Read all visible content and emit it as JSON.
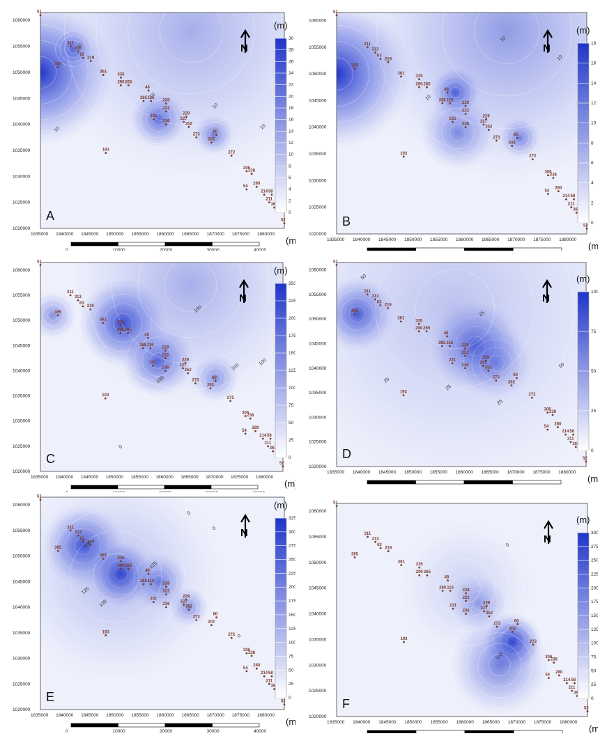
{
  "colors": {
    "deep": "#1f35c9",
    "light": "#eef0fb",
    "marker": "#7a3b2a",
    "bar": "#000000"
  },
  "common": {
    "unit": "(m)",
    "north_letter": "N",
    "x_ticks": [
      "1835000",
      "1840000",
      "1845000",
      "1850000",
      "1855000",
      "1860000",
      "1865000",
      "1870000",
      "1875000",
      "1880000"
    ],
    "y_ticks": [
      "1060000",
      "1055000",
      "1050000",
      "1045000",
      "1040000",
      "1035000",
      "1030000",
      "1025000",
      "1020000"
    ],
    "scale_labels": [
      "0",
      "10000",
      "20000",
      "30000",
      "40000"
    ],
    "scale_unit": "(m)"
  },
  "chart_data": [
    {
      "type": "heatmap",
      "panel": "A",
      "colorbar_max": 30,
      "colorbar_ticks": [
        "30",
        "28",
        "26",
        "24",
        "22",
        "20",
        "18",
        "16",
        "14",
        "12",
        "10",
        "8",
        "6",
        "4",
        "2",
        "0"
      ],
      "contour_labels": [
        "10",
        "10",
        "10",
        "10",
        "10"
      ],
      "stations": [
        {
          "id": "51",
          "x": 1835000,
          "y": 1061000
        },
        {
          "id": "311",
          "x": 1841000,
          "y": 1055000
        },
        {
          "id": "313",
          "x": 1842500,
          "y": 1054000
        },
        {
          "id": "63",
          "x": 1843500,
          "y": 1052800
        },
        {
          "id": "219",
          "x": 1845000,
          "y": 1052200
        },
        {
          "id": "365",
          "x": 1838500,
          "y": 1051000
        },
        {
          "id": "361",
          "x": 1847500,
          "y": 1049500
        },
        {
          "id": "335",
          "x": 1851000,
          "y": 1049000
        },
        {
          "id": "290",
          "x": 1851000,
          "y": 1047500
        },
        {
          "id": "265",
          "x": 1852500,
          "y": 1047500
        },
        {
          "id": "48",
          "x": 1856500,
          "y": 1046500
        },
        {
          "id": "285",
          "x": 1855500,
          "y": 1044500
        },
        {
          "id": "116",
          "x": 1857000,
          "y": 1044500
        },
        {
          "id": "228",
          "x": 1860000,
          "y": 1044000
        },
        {
          "id": "222",
          "x": 1860000,
          "y": 1042500
        },
        {
          "id": "229",
          "x": 1864000,
          "y": 1041500
        },
        {
          "id": "231",
          "x": 1857500,
          "y": 1041000
        },
        {
          "id": "236",
          "x": 1860000,
          "y": 1040000
        },
        {
          "id": "227",
          "x": 1863500,
          "y": 1040500
        },
        {
          "id": "352",
          "x": 1864500,
          "y": 1039500
        },
        {
          "id": "273",
          "x": 1866000,
          "y": 1037500
        },
        {
          "id": "60",
          "x": 1870000,
          "y": 1038000
        },
        {
          "id": "202",
          "x": 1869000,
          "y": 1036500
        },
        {
          "id": "193",
          "x": 1848000,
          "y": 1034500
        },
        {
          "id": "272",
          "x": 1873000,
          "y": 1034000
        },
        {
          "id": "306",
          "x": 1876000,
          "y": 1031000
        },
        {
          "id": "238",
          "x": 1877000,
          "y": 1030500
        },
        {
          "id": "54",
          "x": 1876000,
          "y": 1027500
        },
        {
          "id": "280",
          "x": 1878000,
          "y": 1028000
        },
        {
          "id": "214",
          "x": 1879500,
          "y": 1026500
        },
        {
          "id": "58",
          "x": 1881000,
          "y": 1026500
        },
        {
          "id": "211",
          "x": 1880500,
          "y": 1025000
        },
        {
          "id": "363",
          "x": 1881500,
          "y": 1024000
        },
        {
          "id": "52",
          "x": 1883500,
          "y": 1021000
        }
      ]
    },
    {
      "type": "heatmap",
      "panel": "B",
      "colorbar_max": 18,
      "colorbar_ticks": [
        "18",
        "16",
        "14",
        "12",
        "10",
        "8",
        "6",
        "4",
        "2",
        "0"
      ],
      "contour_labels": [
        "10",
        "10",
        "10"
      ],
      "stations": "same"
    },
    {
      "type": "heatmap",
      "panel": "C",
      "colorbar_max": 250,
      "colorbar_ticks": [
        "250",
        "225",
        "200",
        "175",
        "150",
        "125",
        "100",
        "75",
        "50",
        "25",
        "0"
      ],
      "contour_labels": [
        "100",
        "100",
        "100",
        "100",
        "0"
      ],
      "stations": "same"
    },
    {
      "type": "heatmap",
      "panel": "D",
      "colorbar_max": 100,
      "colorbar_ticks": [
        "100",
        "75",
        "50",
        "25",
        "0"
      ],
      "contour_labels": [
        "50",
        "25",
        "25",
        "25",
        "25",
        "50"
      ],
      "stations": "same"
    },
    {
      "type": "heatmap",
      "panel": "E",
      "colorbar_max": 325,
      "colorbar_ticks": [
        "325",
        "300",
        "275",
        "250",
        "225",
        "200",
        "175",
        "150",
        "125",
        "100",
        "75",
        "50",
        "25",
        "0"
      ],
      "contour_labels": [
        "0",
        "0",
        "100",
        "125",
        "100",
        "125",
        "0"
      ],
      "stations": "same"
    },
    {
      "type": "heatmap",
      "panel": "F",
      "colorbar_max": 300,
      "colorbar_ticks": [
        "300",
        "275",
        "250",
        "225",
        "200",
        "175",
        "150",
        "125",
        "100",
        "75",
        "50",
        "25",
        "0"
      ],
      "contour_labels": [
        "0",
        "100"
      ],
      "stations": "same"
    }
  ]
}
